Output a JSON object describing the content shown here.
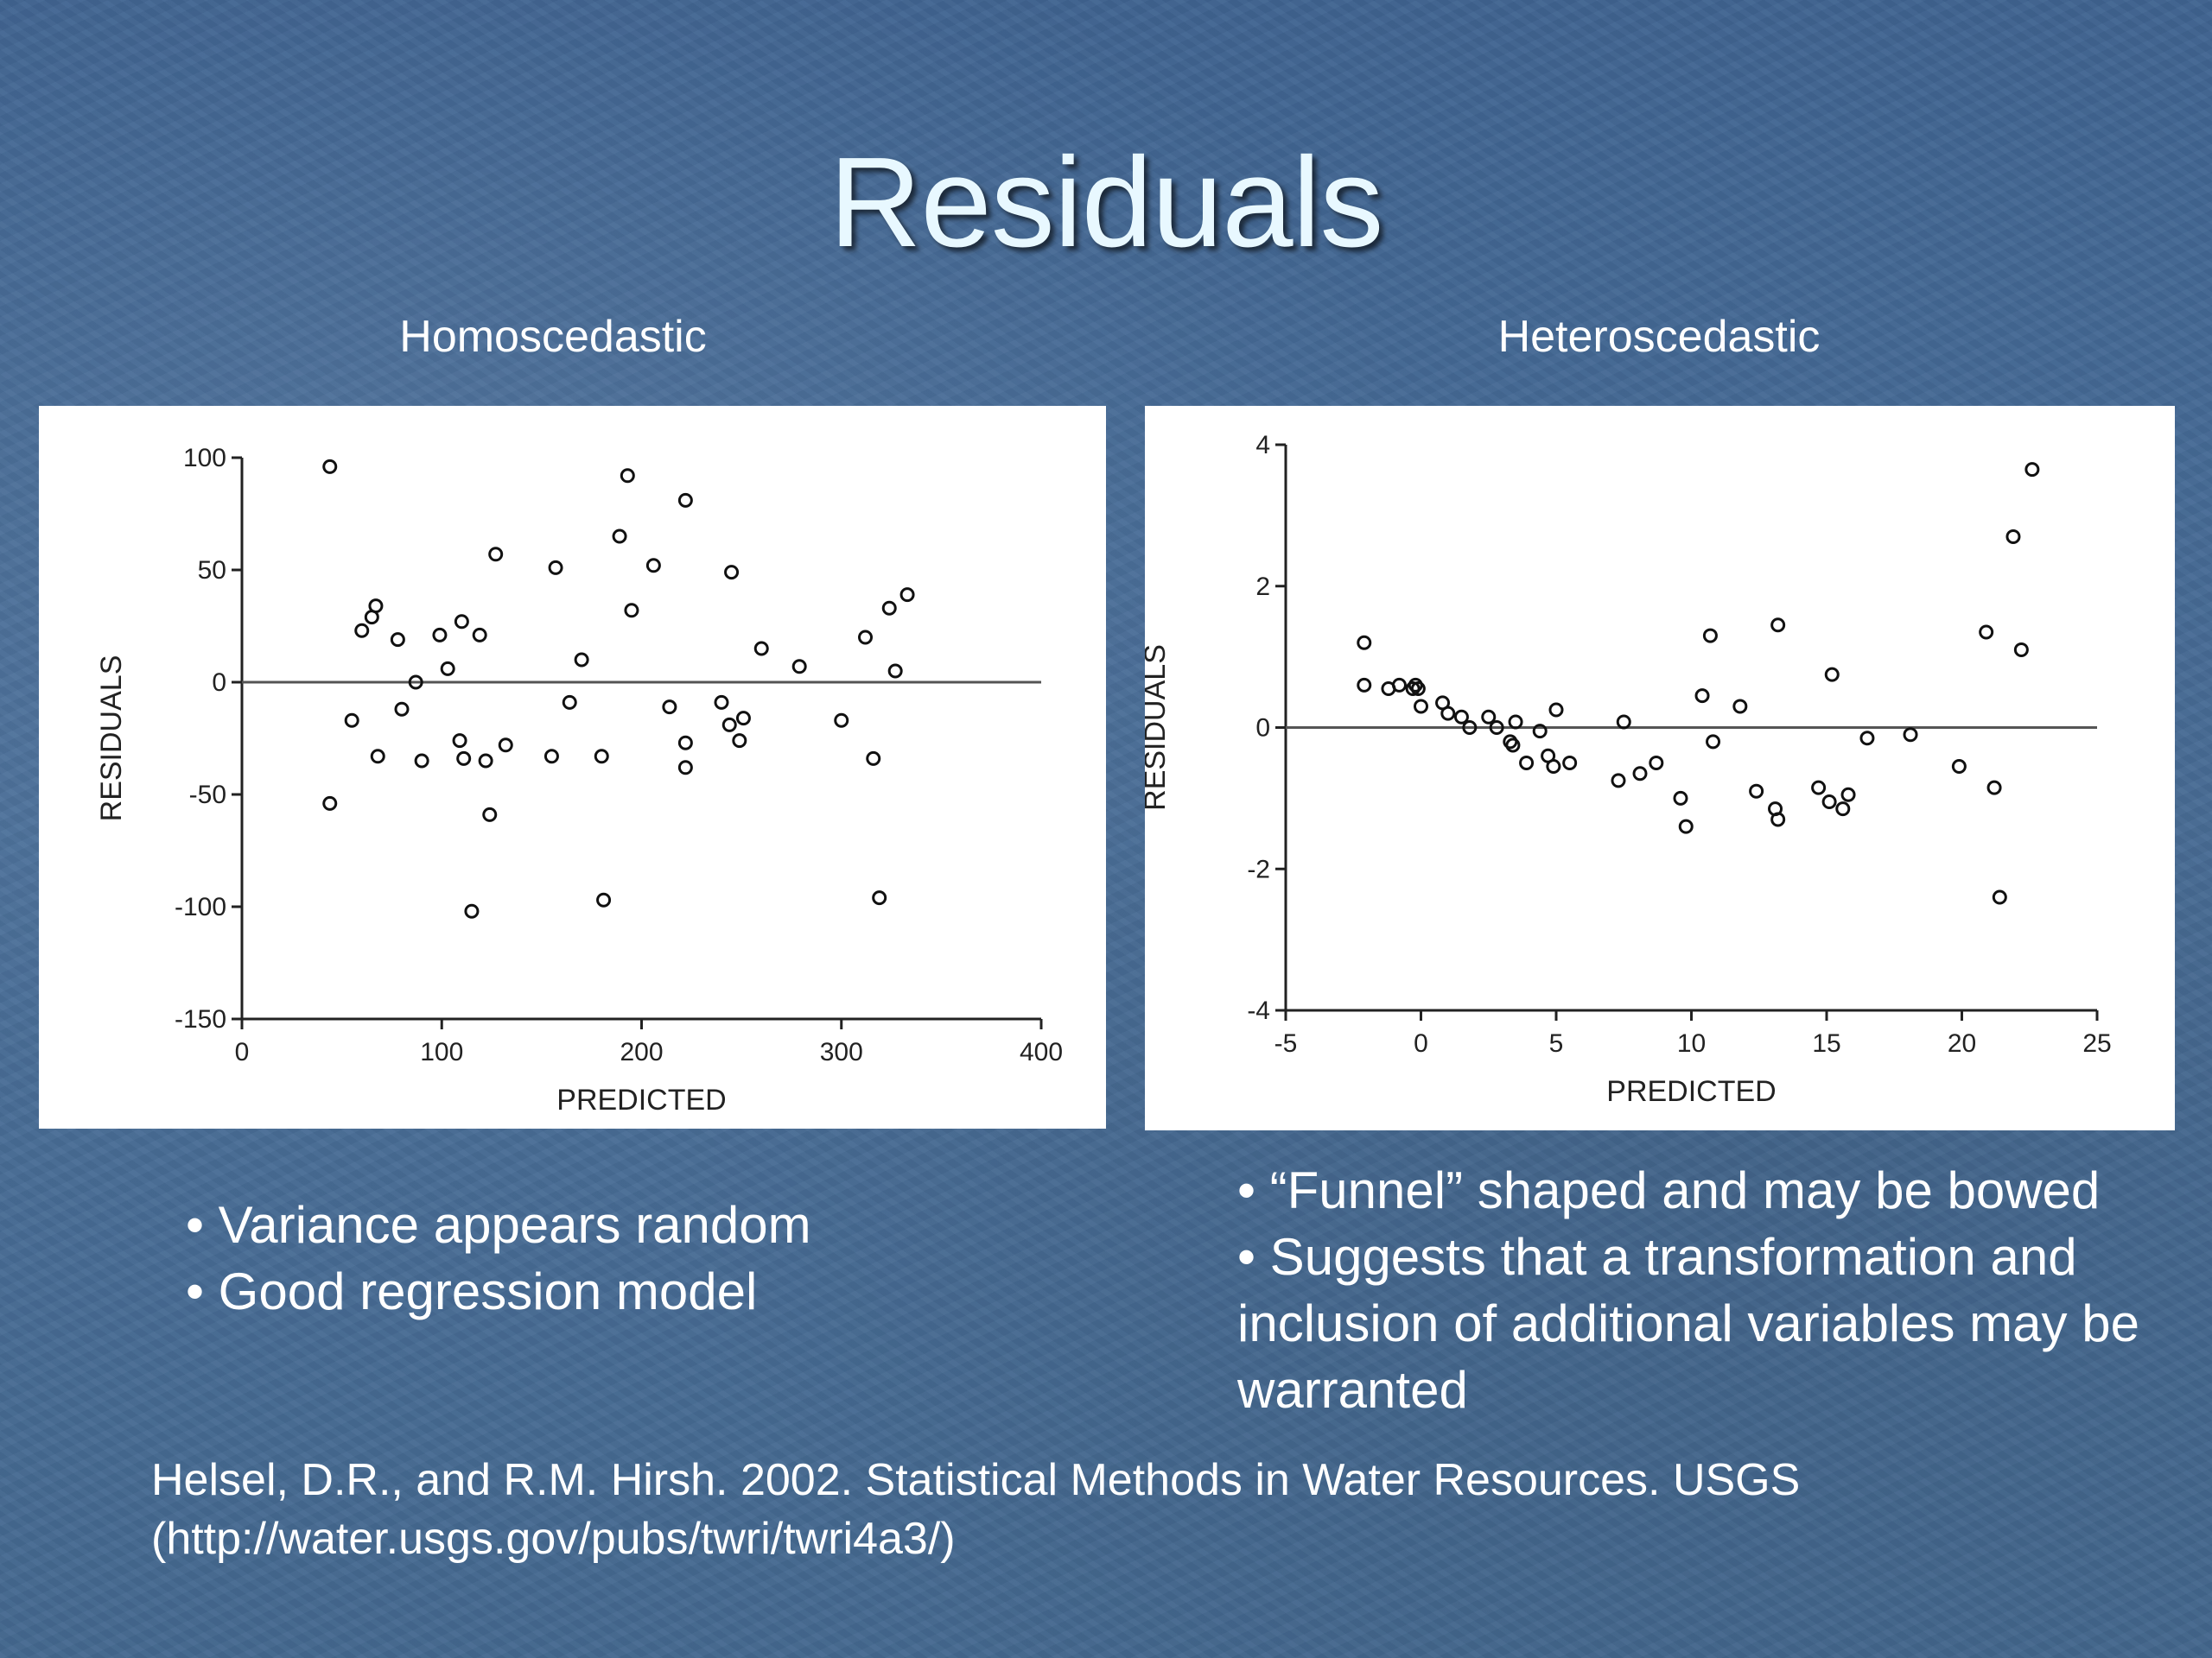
{
  "slide": {
    "title": "Residuals",
    "left_heading": "Homoscedastic",
    "right_heading": "Heteroscedastic",
    "left_bullets": [
      "• Variance appears random",
      "• Good regression model"
    ],
    "right_bullets": [
      "• “Funnel” shaped and may be bowed",
      "• Suggests that a transformation and inclusion of additional variables may be warranted"
    ],
    "citation_line1": "Helsel, D.R., and R.M. Hirsh.  2002.  Statistical Methods in Water Resources.  USGS",
    "citation_line2": "(http://water.usgs.gov/pubs/twri/twri4a3/)"
  },
  "chart_data": [
    {
      "type": "scatter",
      "title": "Homoscedastic",
      "xlabel": "PREDICTED",
      "ylabel": "RESIDUALS",
      "xlim": [
        0,
        400
      ],
      "ylim": [
        -150,
        100
      ],
      "xticks": [
        0,
        100,
        200,
        300,
        400
      ],
      "yticks": [
        -150,
        -100,
        -50,
        0,
        50,
        100
      ],
      "reference_line_y": 0,
      "points": [
        [
          44,
          96
        ],
        [
          44,
          -54
        ],
        [
          55,
          -17
        ],
        [
          60,
          23
        ],
        [
          65,
          29
        ],
        [
          67,
          34
        ],
        [
          68,
          -33
        ],
        [
          78,
          19
        ],
        [
          80,
          -12
        ],
        [
          87,
          0
        ],
        [
          90,
          -35
        ],
        [
          99,
          21
        ],
        [
          103,
          6
        ],
        [
          109,
          -26
        ],
        [
          110,
          27
        ],
        [
          111,
          -34
        ],
        [
          119,
          21
        ],
        [
          122,
          -35
        ],
        [
          124,
          -59
        ],
        [
          127,
          57
        ],
        [
          132,
          -28
        ],
        [
          115,
          -102
        ],
        [
          155,
          -33
        ],
        [
          157,
          51
        ],
        [
          164,
          -9
        ],
        [
          170,
          10
        ],
        [
          180,
          -33
        ],
        [
          181,
          -97
        ],
        [
          189,
          65
        ],
        [
          193,
          92
        ],
        [
          195,
          32
        ],
        [
          206,
          52
        ],
        [
          214,
          -11
        ],
        [
          222,
          -27
        ],
        [
          222,
          -38
        ],
        [
          222,
          81
        ],
        [
          240,
          -9
        ],
        [
          244,
          -19
        ],
        [
          245,
          49
        ],
        [
          249,
          -26
        ],
        [
          251,
          -16
        ],
        [
          260,
          15
        ],
        [
          279,
          7
        ],
        [
          300,
          -17
        ],
        [
          312,
          20
        ],
        [
          316,
          -34
        ],
        [
          319,
          -96
        ],
        [
          324,
          33
        ],
        [
          327,
          5
        ],
        [
          333,
          39
        ]
      ]
    },
    {
      "type": "scatter",
      "title": "Heteroscedastic",
      "xlabel": "PREDICTED",
      "ylabel": "RESIDUALS",
      "xlim": [
        -5,
        25
      ],
      "ylim": [
        -4,
        4
      ],
      "xticks": [
        -5,
        0,
        5,
        10,
        15,
        20,
        25
      ],
      "yticks": [
        -4,
        -2,
        0,
        2,
        4
      ],
      "reference_line_y": 0,
      "points": [
        [
          -2.1,
          1.2
        ],
        [
          -2.1,
          0.6
        ],
        [
          -1.2,
          0.55
        ],
        [
          -0.8,
          0.6
        ],
        [
          -0.3,
          0.55
        ],
        [
          -0.2,
          0.6
        ],
        [
          -0.1,
          0.55
        ],
        [
          0.0,
          0.3
        ],
        [
          0.8,
          0.35
        ],
        [
          1.0,
          0.2
        ],
        [
          1.5,
          0.15
        ],
        [
          1.8,
          0.0
        ],
        [
          2.5,
          0.15
        ],
        [
          2.8,
          0.0
        ],
        [
          3.3,
          -0.2
        ],
        [
          3.4,
          -0.25
        ],
        [
          3.5,
          0.08
        ],
        [
          3.9,
          -0.5
        ],
        [
          4.4,
          -0.05
        ],
        [
          4.7,
          -0.4
        ],
        [
          4.9,
          -0.55
        ],
        [
          5.0,
          0.25
        ],
        [
          5.5,
          -0.5
        ],
        [
          7.3,
          -0.75
        ],
        [
          7.5,
          0.08
        ],
        [
          8.1,
          -0.65
        ],
        [
          8.7,
          -0.5
        ],
        [
          9.6,
          -1.0
        ],
        [
          9.8,
          -1.4
        ],
        [
          10.4,
          0.45
        ],
        [
          10.7,
          1.3
        ],
        [
          10.8,
          -0.2
        ],
        [
          11.8,
          0.3
        ],
        [
          12.4,
          -0.9
        ],
        [
          13.1,
          -1.15
        ],
        [
          13.2,
          -1.3
        ],
        [
          13.2,
          1.45
        ],
        [
          14.7,
          -0.85
        ],
        [
          15.1,
          -1.05
        ],
        [
          15.2,
          0.75
        ],
        [
          15.6,
          -1.15
        ],
        [
          15.8,
          -0.95
        ],
        [
          16.5,
          -0.15
        ],
        [
          18.1,
          -0.1
        ],
        [
          19.9,
          -0.55
        ],
        [
          20.9,
          1.35
        ],
        [
          21.2,
          -0.85
        ],
        [
          21.4,
          -2.4
        ],
        [
          21.9,
          2.7
        ],
        [
          22.2,
          1.1
        ],
        [
          22.6,
          3.65
        ]
      ]
    }
  ]
}
